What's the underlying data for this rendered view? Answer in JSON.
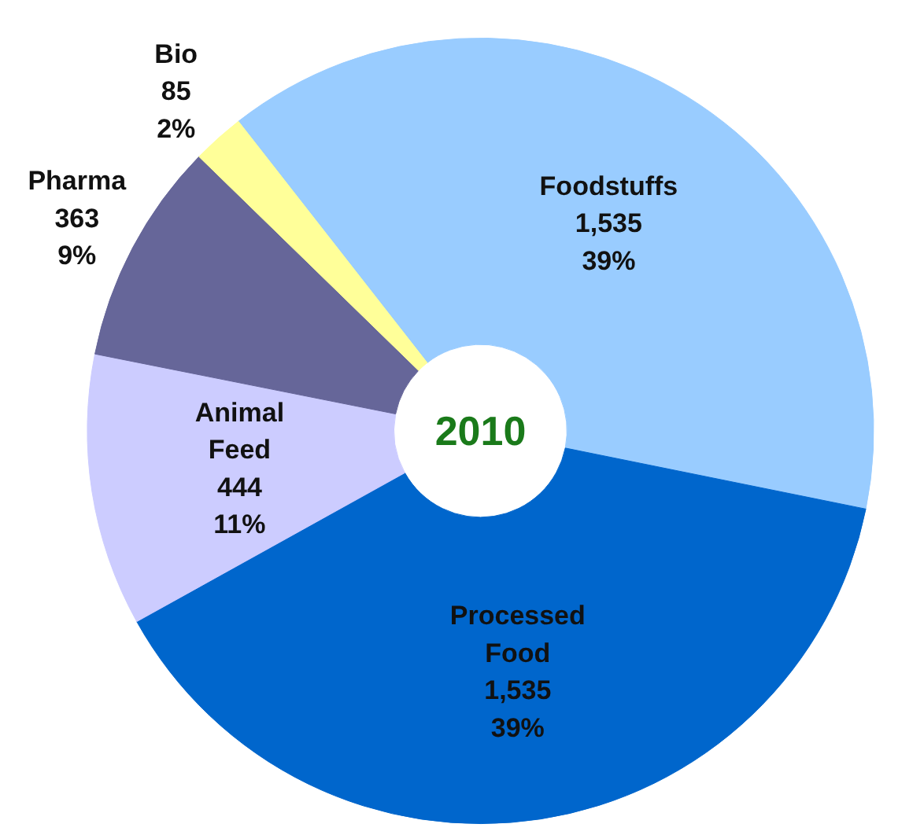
{
  "chart_data": {
    "type": "donut",
    "title": "2010",
    "categories": [
      "Foodstuffs",
      "Processed\nFood",
      "Animal\nFeed",
      "Pharma",
      "Bio"
    ],
    "values": [
      1535,
      1535,
      444,
      363,
      85
    ],
    "value_labels": [
      "1,535\n39%",
      "1,535\n39%",
      "444\n11%",
      "363\n9%",
      "85\n2%"
    ],
    "colors": [
      "#99ccff",
      "#0066cc",
      "#ccccff",
      "#666699",
      "#ffff99"
    ]
  }
}
